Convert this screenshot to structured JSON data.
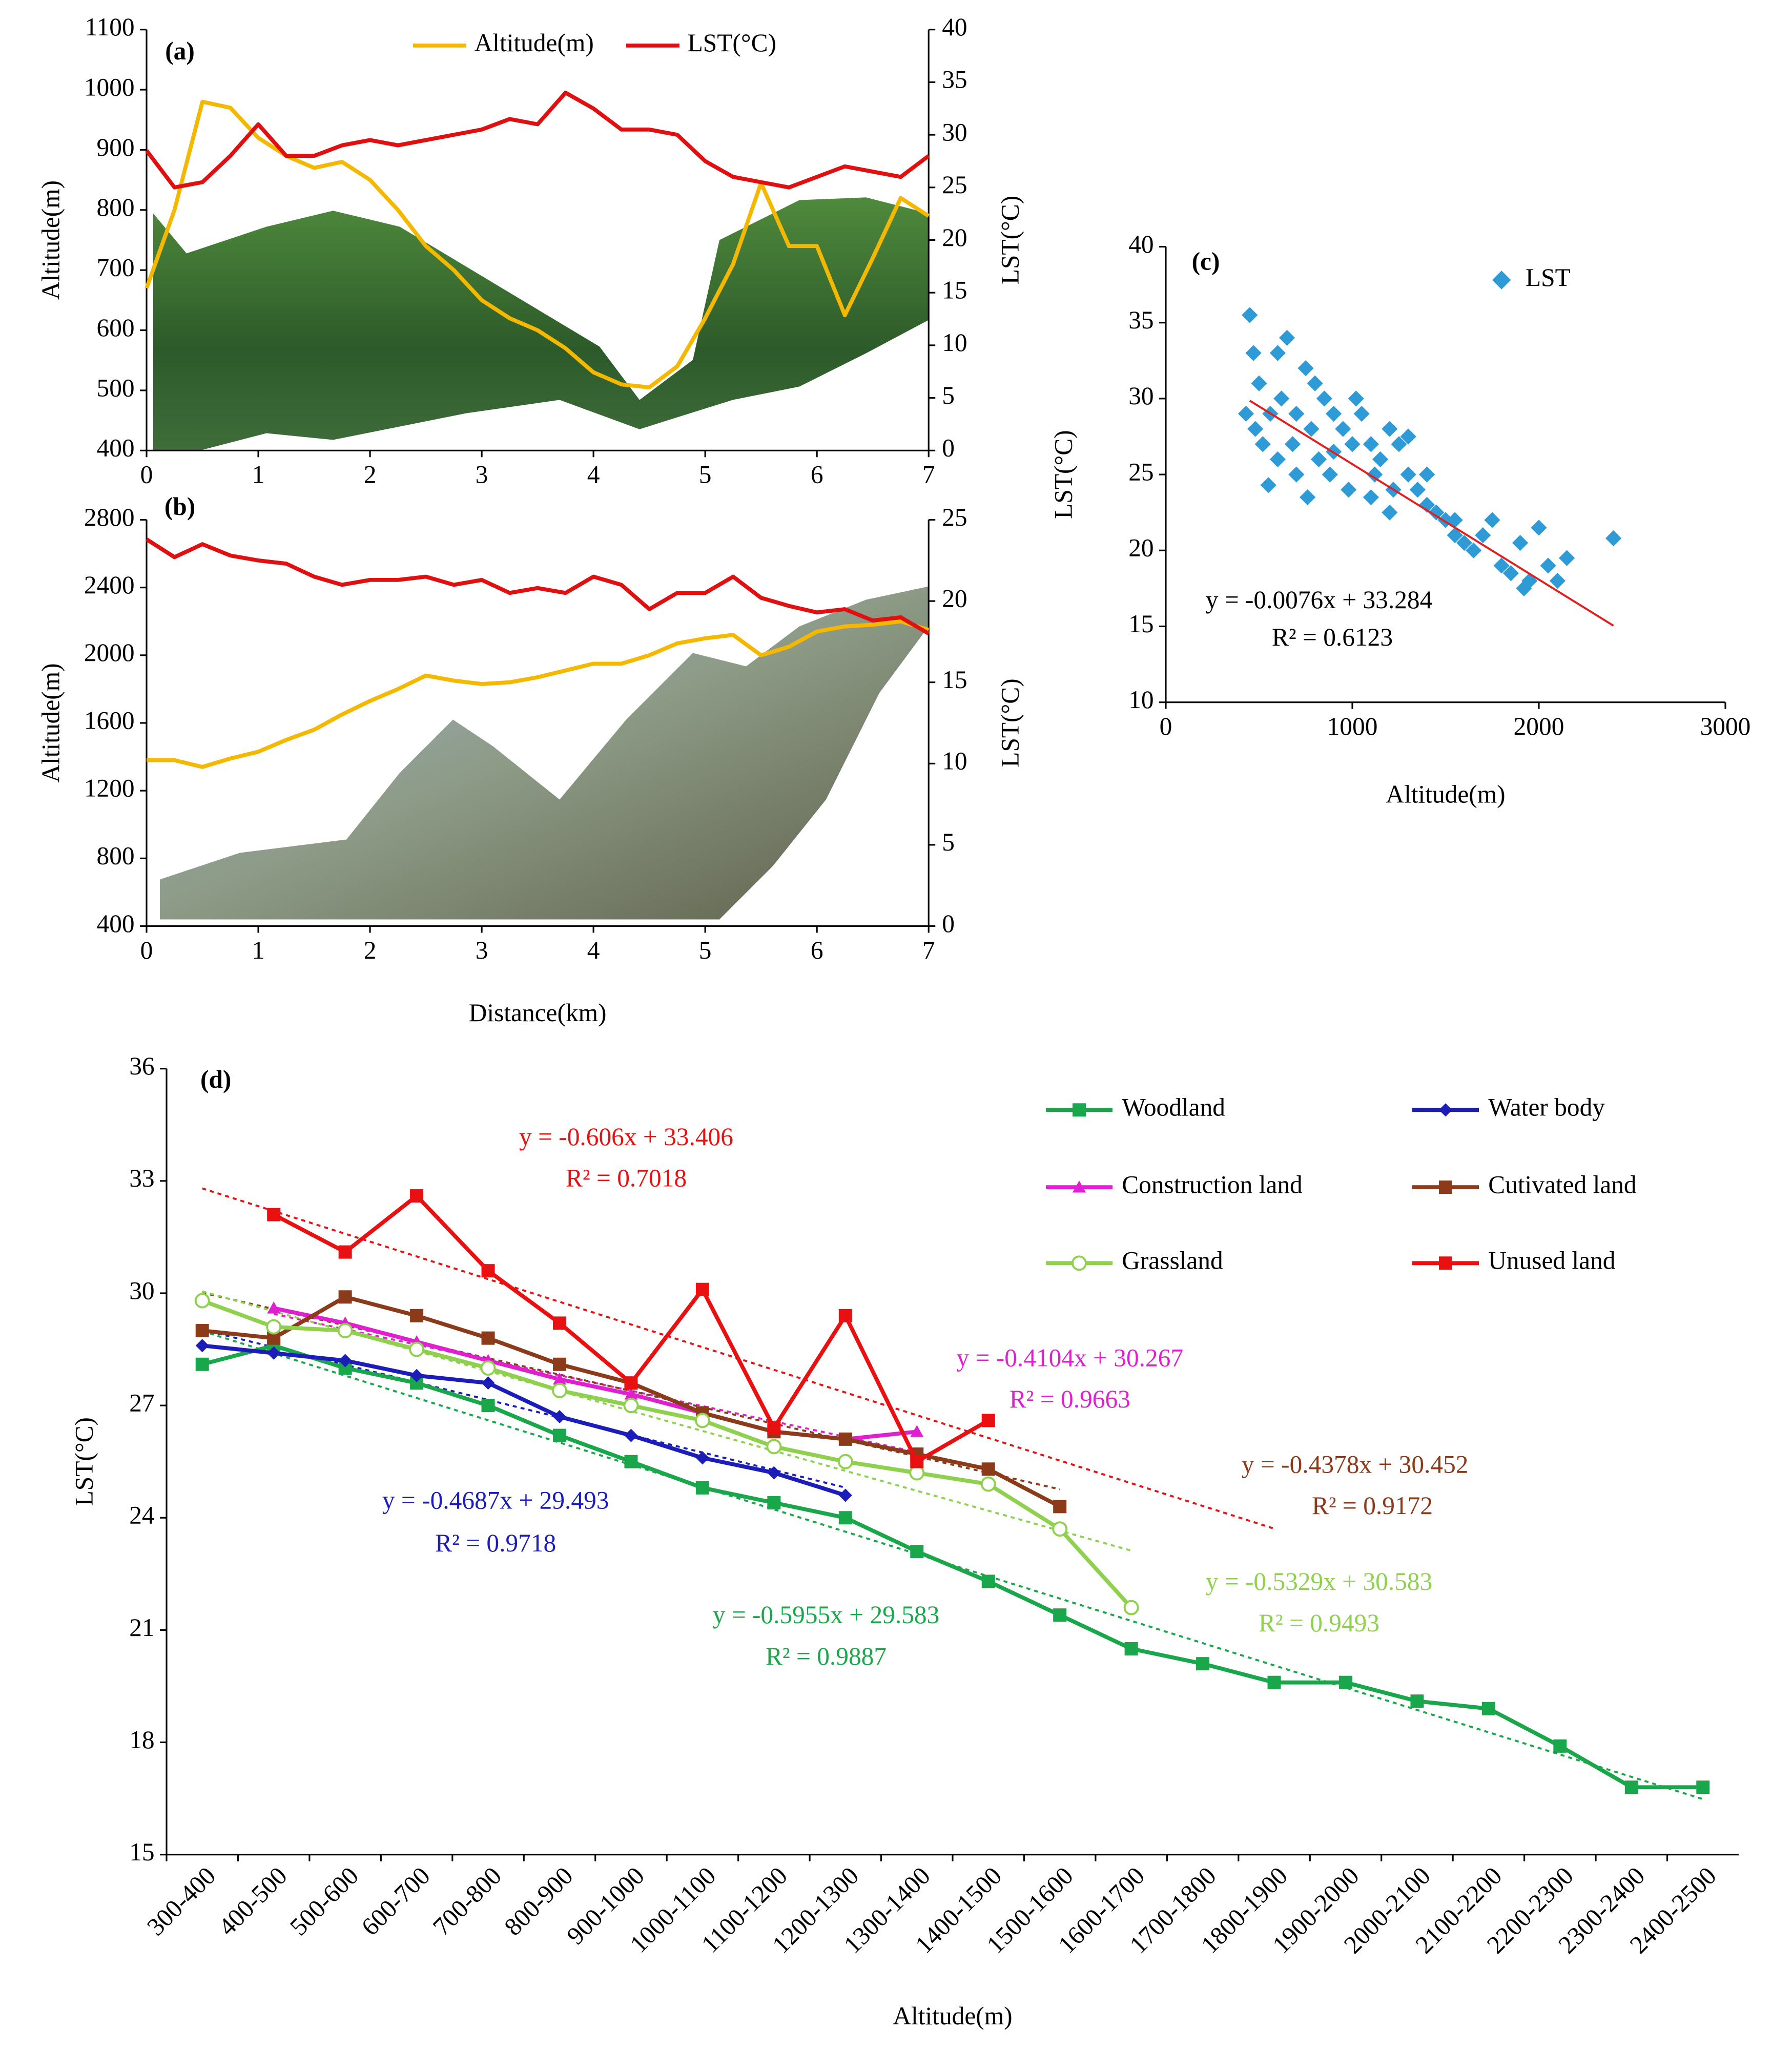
{
  "chart_data": [
    {
      "type": "line",
      "label": "(a)",
      "ylabel": "Altitude(m)",
      "y2label": "LST(°C)",
      "x": [
        0,
        0.25,
        0.5,
        0.75,
        1,
        1.25,
        1.5,
        1.75,
        2,
        2.25,
        2.5,
        2.75,
        3,
        3.25,
        3.5,
        3.75,
        4,
        4.25,
        4.5,
        4.75,
        5,
        5.25,
        5.5,
        5.75,
        6,
        6.25,
        6.5,
        6.75,
        7
      ],
      "series": [
        {
          "name": "Altitude(m)",
          "color": "#f5b800",
          "values": [
            670,
            800,
            980,
            970,
            920,
            890,
            870,
            880,
            850,
            800,
            740,
            700,
            650,
            620,
            600,
            570,
            530,
            510,
            505,
            540,
            620,
            710,
            845,
            740,
            740,
            625,
            720,
            820,
            790
          ]
        },
        {
          "name": "LST(°C)",
          "color": "#e01010",
          "axis": "y2",
          "values": [
            28.5,
            25,
            25.5,
            28,
            31,
            28,
            28,
            29,
            29.5,
            29,
            29.5,
            30,
            30.5,
            31.5,
            31,
            34,
            32.5,
            30.5,
            30.5,
            30,
            27.5,
            26,
            25.5,
            25,
            26,
            27,
            26.5,
            26,
            28
          ]
        }
      ],
      "xlim": [
        0,
        7
      ],
      "xticks": [
        0,
        1,
        2,
        3,
        4,
        5,
        6,
        7
      ],
      "ylim": [
        400,
        1100
      ],
      "yticks": [
        400,
        500,
        600,
        700,
        800,
        900,
        1000,
        1100
      ],
      "y2lim": [
        0,
        40
      ],
      "y2ticks": [
        0,
        5,
        10,
        15,
        20,
        25,
        30,
        35,
        40
      ]
    },
    {
      "type": "line",
      "label": "(b)",
      "xlabel": "Distance(km)",
      "ylabel": "Altitude(m)",
      "y2label": "LST(°C)",
      "x": [
        0,
        0.25,
        0.5,
        0.75,
        1,
        1.25,
        1.5,
        1.75,
        2,
        2.25,
        2.5,
        2.75,
        3,
        3.25,
        3.5,
        3.75,
        4,
        4.25,
        4.5,
        4.75,
        5,
        5.25,
        5.5,
        5.75,
        6,
        6.25,
        6.5,
        6.75,
        7
      ],
      "series": [
        {
          "color": "#f5b800",
          "values": [
            1380,
            1380,
            1340,
            1390,
            1430,
            1500,
            1560,
            1650,
            1730,
            1800,
            1880,
            1850,
            1830,
            1840,
            1870,
            1910,
            1950,
            1950,
            2000,
            2070,
            2100,
            2120,
            2000,
            2050,
            2140,
            2170,
            2180,
            2200,
            2150
          ]
        },
        {
          "color": "#e01010",
          "axis": "y2",
          "values": [
            23.8,
            22.7,
            23.5,
            22.8,
            22.5,
            22.3,
            21.5,
            21,
            21.3,
            21.3,
            21.5,
            21,
            21.3,
            20.5,
            20.8,
            20.5,
            21.5,
            21,
            19.5,
            20.5,
            20.5,
            21.5,
            20.2,
            19.7,
            19.3,
            19.5,
            18.8,
            19,
            18
          ]
        }
      ],
      "xlim": [
        0,
        7
      ],
      "xticks": [
        0,
        1,
        2,
        3,
        4,
        5,
        6,
        7
      ],
      "ylim": [
        400,
        2800
      ],
      "yticks": [
        400,
        800,
        1200,
        1600,
        2000,
        2400,
        2800
      ],
      "y2lim": [
        0,
        25
      ],
      "y2ticks": [
        0,
        5,
        10,
        15,
        20,
        25
      ]
    },
    {
      "type": "scatter",
      "label": "(c)",
      "xlabel": "Altitude(m)",
      "ylabel": "LST(°C)",
      "x": [
        450,
        470,
        500,
        430,
        480,
        520,
        550,
        600,
        650,
        620,
        700,
        680,
        750,
        800,
        780,
        820,
        850,
        900,
        880,
        950,
        1000,
        980,
        1050,
        1100,
        1120,
        1150,
        1200,
        1250,
        1220,
        1300,
        1350,
        1400,
        1450,
        1500,
        1550,
        1600,
        1650,
        1700,
        1750,
        1800,
        1850,
        1900,
        1920,
        1950,
        2000,
        2050,
        2100,
        2150,
        2400,
        700,
        900,
        1100,
        1300,
        1400,
        600,
        760,
        1020,
        560,
        1200,
        1550
      ],
      "series": [
        {
          "name": "LST",
          "color": "#2e9ad6",
          "values": [
            35.5,
            33,
            31,
            29,
            28,
            27,
            24.3,
            33,
            34,
            30,
            29,
            27,
            32,
            31,
            28,
            26,
            30,
            29,
            25,
            28,
            27,
            24,
            29,
            27,
            25,
            26,
            28,
            27,
            24,
            25,
            24,
            23,
            22.5,
            22,
            21,
            20.5,
            20,
            21,
            22,
            19,
            18.5,
            20.5,
            17.5,
            18,
            21.5,
            19,
            18,
            19.5,
            20.8,
            25,
            26.5,
            23.5,
            27.5,
            25,
            26,
            23.5,
            30,
            29,
            22.5,
            22
          ]
        }
      ],
      "trendline": {
        "color": "#e02020",
        "slope": -0.0076,
        "intercept": 33.284,
        "xrange": [
          450,
          2400
        ]
      },
      "annotations": [
        "y = -0.0076x + 33.284",
        "R² = 0.6123"
      ],
      "xlim": [
        0,
        3000
      ],
      "xticks": [
        0,
        1000,
        2000,
        3000
      ],
      "ylim": [
        10,
        40
      ],
      "yticks": [
        10,
        15,
        20,
        25,
        30,
        35,
        40
      ]
    },
    {
      "type": "line",
      "label": "(d)",
      "xlabel": "Altitude(m)",
      "ylabel": "LST(°C)",
      "categories": [
        "300-400",
        "400-500",
        "500-600",
        "600-700",
        "700-800",
        "800-900",
        "900-1000",
        "1000-1100",
        "1100-1200",
        "1200-1300",
        "1300-1400",
        "1400-1500",
        "1500-1600",
        "1600-1700",
        "1700-1800",
        "1800-1900",
        "1900-2000",
        "2000-2100",
        "2100-2200",
        "2200-2300",
        "2300-2400",
        "2400-2500"
      ],
      "series": [
        {
          "name": "Woodland",
          "color": "#1aa64a",
          "marker": "square",
          "values": [
            28.1,
            28.6,
            28.0,
            27.6,
            27.0,
            26.2,
            25.5,
            24.8,
            24.4,
            24.0,
            23.1,
            22.3,
            21.4,
            20.5,
            20.1,
            19.6,
            19.6,
            19.1,
            18.9,
            17.9,
            16.8,
            16.8
          ],
          "trendline": {
            "slope": -0.5955,
            "intercept": 29.583,
            "xrange": [
              1,
              22
            ]
          },
          "annotations": [
            "y = -0.5955x + 29.583",
            "R² = 0.9887"
          ]
        },
        {
          "name": "Water body",
          "color": "#1c1cb8",
          "marker": "diamond",
          "values": [
            28.6,
            28.4,
            28.2,
            27.8,
            27.6,
            26.7,
            26.2,
            25.6,
            25.2,
            24.6,
            null,
            null,
            null,
            null,
            null,
            null,
            null,
            null,
            null,
            null,
            null,
            null
          ],
          "trendline": {
            "slope": -0.4687,
            "intercept": 29.493,
            "xrange": [
              1,
              10
            ]
          },
          "annotations": [
            "y = -0.4687x + 29.493",
            "R² = 0.9718"
          ]
        },
        {
          "name": "Construction land",
          "color": "#e020d0",
          "marker": "triangle",
          "values": [
            null,
            29.6,
            29.2,
            28.7,
            28.2,
            27.7,
            27.3,
            26.8,
            26.3,
            26.1,
            26.3,
            null,
            null,
            null,
            null,
            null,
            null,
            null,
            null,
            null,
            null,
            null
          ],
          "trendline": {
            "slope": -0.4104,
            "intercept": 30.267,
            "xrange": [
              2,
              11
            ]
          },
          "annotations": [
            "y = -0.4104x + 30.267",
            "R² = 0.9663"
          ]
        },
        {
          "name": "Cutivated land",
          "color": "#8b3a1a",
          "marker": "square",
          "values": [
            29.0,
            28.8,
            29.9,
            29.4,
            28.8,
            28.1,
            27.6,
            26.8,
            26.3,
            26.1,
            25.7,
            25.3,
            24.3,
            null,
            null,
            null,
            null,
            null,
            null,
            null,
            null,
            null
          ],
          "trendline": {
            "slope": -0.4378,
            "intercept": 30.452,
            "xrange": [
              1,
              13
            ]
          },
          "annotations": [
            "y = -0.4378x + 30.452",
            "R² = 0.9172"
          ]
        },
        {
          "name": "Grassland",
          "color": "#8fd14f",
          "marker": "circle",
          "values": [
            29.8,
            29.1,
            29.0,
            28.5,
            28.0,
            27.4,
            27.0,
            26.6,
            25.9,
            25.5,
            25.2,
            24.9,
            23.7,
            21.6,
            null,
            null,
            null,
            null,
            null,
            null,
            null,
            null
          ],
          "trendline": {
            "slope": -0.5329,
            "intercept": 30.583,
            "xrange": [
              1,
              14
            ]
          },
          "annotations": [
            "y = -0.5329x + 30.583",
            "R² = 0.9493"
          ]
        },
        {
          "name": "Unused land",
          "color": "#e81010",
          "marker": "square",
          "values": [
            null,
            32.1,
            31.1,
            32.6,
            30.6,
            29.2,
            27.6,
            30.1,
            26.4,
            29.4,
            25.5,
            26.6,
            null,
            null,
            null,
            null,
            null,
            null,
            null,
            null,
            null,
            null
          ],
          "trendline": {
            "slope": -0.606,
            "intercept": 33.406,
            "xrange": [
              1,
              16
            ]
          },
          "annotations": [
            "y = -0.606x + 33.406",
            "R² = 0.7018"
          ]
        }
      ],
      "ylim": [
        15,
        36
      ],
      "yticks": [
        15,
        18,
        21,
        24,
        27,
        30,
        33,
        36
      ]
    }
  ]
}
